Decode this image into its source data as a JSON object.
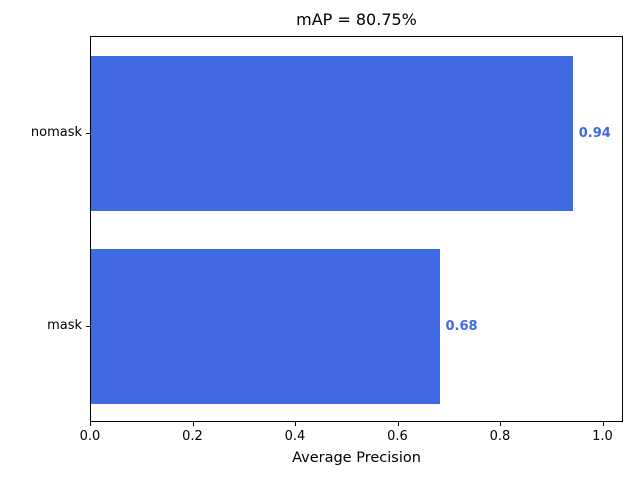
{
  "figure": {
    "background": "#ffffff",
    "spine_color": "#000000"
  },
  "chart_data": {
    "type": "bar",
    "orientation": "horizontal",
    "title": "mAP = 80.75%",
    "xlabel": "Average Precision",
    "ylabel": "",
    "categories": [
      "nomask",
      "mask"
    ],
    "values": [
      0.94,
      0.68
    ],
    "value_labels": [
      "0.94",
      "0.68"
    ],
    "xlim": [
      0.0,
      1.04
    ],
    "xticks": [
      0.0,
      0.2,
      0.4,
      0.6,
      0.8,
      1.0
    ],
    "xtick_labels": [
      "0.0",
      "0.2",
      "0.4",
      "0.6",
      "0.8",
      "1.0"
    ],
    "bar_color": "#4169e1",
    "value_label_color": "#4169e1",
    "bar_height_ratio": 0.8,
    "grid": false,
    "legend": "none"
  }
}
